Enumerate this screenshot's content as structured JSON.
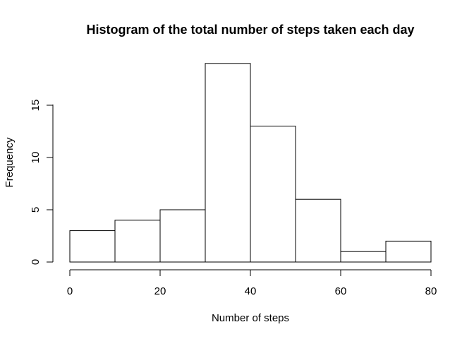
{
  "chart_data": {
    "type": "bar",
    "histogram": true,
    "title": "Histogram of the total number of steps taken each day",
    "xlabel": "Number of steps",
    "ylabel": "Frequency",
    "bins": [
      {
        "x0": 0,
        "x1": 10,
        "value": 3
      },
      {
        "x0": 10,
        "x1": 20,
        "value": 4
      },
      {
        "x0": 20,
        "x1": 30,
        "value": 5
      },
      {
        "x0": 30,
        "x1": 40,
        "value": 19
      },
      {
        "x0": 40,
        "x1": 50,
        "value": 13
      },
      {
        "x0": 50,
        "x1": 60,
        "value": 6
      },
      {
        "x0": 60,
        "x1": 70,
        "value": 1
      },
      {
        "x0": 70,
        "x1": 80,
        "value": 2
      }
    ],
    "xticks": [
      0,
      20,
      40,
      60,
      80
    ],
    "yticks": [
      0,
      5,
      10,
      15
    ],
    "xlim": [
      0,
      80
    ],
    "ylim": [
      0,
      19
    ],
    "grid": false,
    "legend": "none"
  }
}
